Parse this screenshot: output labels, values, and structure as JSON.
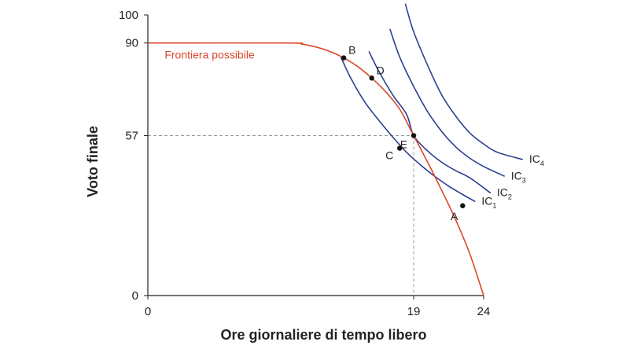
{
  "chart_data": {
    "type": "line",
    "title": "",
    "xlabel": "Ore giornaliere di tempo libero",
    "ylabel": "Voto finale",
    "xlim": [
      0,
      24
    ],
    "ylim": [
      0,
      100
    ],
    "x_ticks": [
      "0",
      "19",
      "24"
    ],
    "y_ticks": [
      "0",
      "57",
      "90",
      "100"
    ],
    "grid": false,
    "colors": {
      "frontier": "#d9482b",
      "indifference": "#2f3f8f",
      "guide": "#999999",
      "axis": "#222222"
    },
    "frontier": {
      "name": "Frontiera possibile",
      "x": [
        0,
        10,
        11,
        12,
        13,
        14,
        15,
        16,
        17,
        18,
        19,
        20,
        21,
        22,
        23,
        24
      ],
      "y": [
        90,
        90,
        89.6,
        88.6,
        87,
        84.7,
        81.6,
        77.5,
        72.6,
        66.4,
        57,
        47.5,
        37.5,
        27,
        15,
        0
      ]
    },
    "indifference_curves": [
      {
        "name": "IC",
        "subscript": "1",
        "x": [
          13.8,
          14.5,
          15.5,
          16.5,
          17.5,
          18.5,
          19.5,
          20.5,
          21.5,
          22.5,
          23.4
        ],
        "y": [
          85,
          77.5,
          69,
          62.5,
          56.5,
          51,
          46.5,
          42.5,
          39,
          36,
          33.5
        ]
      },
      {
        "name": "IC",
        "subscript": "2",
        "x": [
          15.8,
          16.5,
          17.5,
          18.5,
          19,
          20,
          21,
          22,
          23,
          24.5
        ],
        "y": [
          87,
          80,
          71.5,
          64.5,
          57,
          51.5,
          47.5,
          44.5,
          42,
          36.5
        ]
      },
      {
        "name": "IC",
        "subscript": "3",
        "x": [
          17.3,
          18,
          19,
          20,
          21,
          22,
          23,
          24,
          25.5
        ],
        "y": [
          95,
          85,
          74.5,
          65.5,
          58.5,
          53,
          49,
          46,
          42.5
        ]
      },
      {
        "name": "IC",
        "subscript": "4",
        "x": [
          18.4,
          19,
          20,
          21,
          22,
          23,
          24,
          25,
          26.8
        ],
        "y": [
          104,
          94,
          82,
          71.5,
          64,
          58,
          54,
          51,
          48.5
        ]
      }
    ],
    "points": [
      {
        "label": "B",
        "x": 14.0,
        "y": 84.7
      },
      {
        "label": "D",
        "x": 16.0,
        "y": 77.5
      },
      {
        "label": "E",
        "x": 19.0,
        "y": 57.0
      },
      {
        "label": "C",
        "x": 18.0,
        "y": 52.5
      },
      {
        "label": "A",
        "x": 22.5,
        "y": 32.0
      }
    ],
    "guide": {
      "x": 19,
      "y": 57
    }
  }
}
